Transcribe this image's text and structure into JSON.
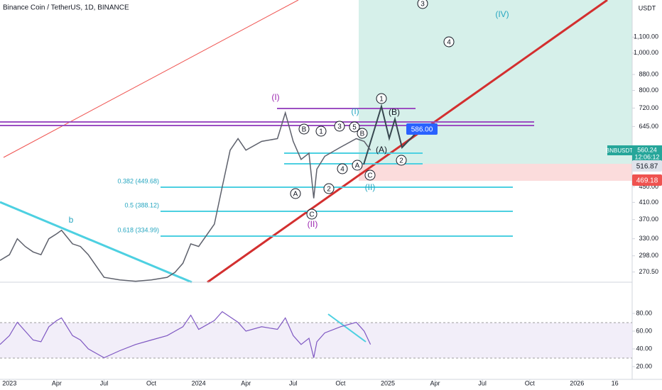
{
  "chart_data": {
    "type": "line",
    "title": "Binance Coin / TetherUS, 1D, BINANCE",
    "currency": "USDT",
    "symbol": "BNBUSDT",
    "log_scale": true,
    "xlim": [
      -0.6,
      39.5
    ],
    "xticks": [
      {
        "value": 0,
        "label": "2023"
      },
      {
        "value": 3,
        "label": "Apr"
      },
      {
        "value": 6,
        "label": "Jul"
      },
      {
        "value": 9,
        "label": "Oct"
      },
      {
        "value": 12,
        "label": "2024"
      },
      {
        "value": 15,
        "label": "Apr"
      },
      {
        "value": 18,
        "label": "Jul"
      },
      {
        "value": 21,
        "label": "Oct"
      },
      {
        "value": 24,
        "label": "2025"
      },
      {
        "value": 27,
        "label": "Apr"
      },
      {
        "value": 30,
        "label": "Jul"
      },
      {
        "value": 33,
        "label": "Oct"
      },
      {
        "value": 36,
        "label": "2026"
      },
      {
        "value": 38.4,
        "label": "16"
      }
    ],
    "ylim": [
      254.5,
      1373
    ],
    "yticks": [
      {
        "value": 1100,
        "label": "1,100.00"
      },
      {
        "value": 1000,
        "label": "1,000.00"
      },
      {
        "value": 880,
        "label": "880.00"
      },
      {
        "value": 800,
        "label": "800.00"
      },
      {
        "value": 720,
        "label": "720.00"
      },
      {
        "value": 645,
        "label": "645.00"
      },
      {
        "value": 450,
        "label": "450.00"
      },
      {
        "value": 410,
        "label": "410.00"
      },
      {
        "value": 370,
        "label": "370.00"
      },
      {
        "value": 330,
        "label": "330.00"
      },
      {
        "value": 298,
        "label": "298.00"
      },
      {
        "value": 270.5,
        "label": "270.50"
      }
    ],
    "x": [
      -0.6,
      0,
      0.5,
      1,
      1.5,
      2,
      2.5,
      3,
      3.3,
      4,
      4.5,
      5,
      6,
      7,
      8,
      9,
      10,
      10.5,
      11,
      11.5,
      12,
      13,
      13.5,
      14,
      14.5,
      15,
      16,
      17,
      17.5,
      18,
      18.5,
      19,
      19.3,
      19.5,
      20,
      21,
      22,
      22.5,
      22.9
    ],
    "series": [
      {
        "name": "BNBUSDT",
        "color": "#5d606b",
        "values": [
          290,
          300,
          330,
          315,
          305,
          300,
          330,
          340,
          347,
          320,
          315,
          300,
          262,
          258,
          256,
          258,
          262,
          270,
          285,
          320,
          315,
          360,
          450,
          560,
          600,
          560,
          590,
          600,
          700,
          590,
          530,
          550,
          420,
          500,
          540,
          570,
          600,
          590,
          560.24
        ]
      }
    ],
    "rsi": {
      "color": "#7e57c2",
      "ylim": [
        5.6,
        113.6
      ],
      "yticks": [
        {
          "value": 80,
          "label": "80.00"
        },
        {
          "value": 60,
          "label": "60.00"
        },
        {
          "value": 40,
          "label": "40.00"
        },
        {
          "value": 20,
          "label": "20.00"
        }
      ],
      "values": [
        45,
        55,
        70,
        60,
        50,
        48,
        65,
        72,
        75,
        55,
        50,
        40,
        30,
        38,
        45,
        50,
        55,
        60,
        65,
        78,
        62,
        72,
        82,
        76,
        70,
        60,
        65,
        62,
        75,
        55,
        45,
        52,
        30,
        48,
        58,
        65,
        70,
        60,
        45
      ]
    },
    "annotations": [
      "(I)",
      "(II)",
      "(IV)",
      "(I)",
      "(II)",
      "b",
      "A",
      "B",
      "1",
      "3",
      "5",
      "B",
      "2",
      "4",
      "A",
      "C",
      "C",
      "1",
      "(B)",
      "(A)",
      "2",
      "3",
      "4"
    ],
    "fib_labels": [
      "0.382 (449.68)",
      "0.5 (388.12)",
      "0.618 (334.99)"
    ],
    "price_tags": {
      "target": "586.00",
      "last": "560.24",
      "countdown": "12:06:12",
      "entry": "516.87",
      "stop": "469.18"
    }
  }
}
